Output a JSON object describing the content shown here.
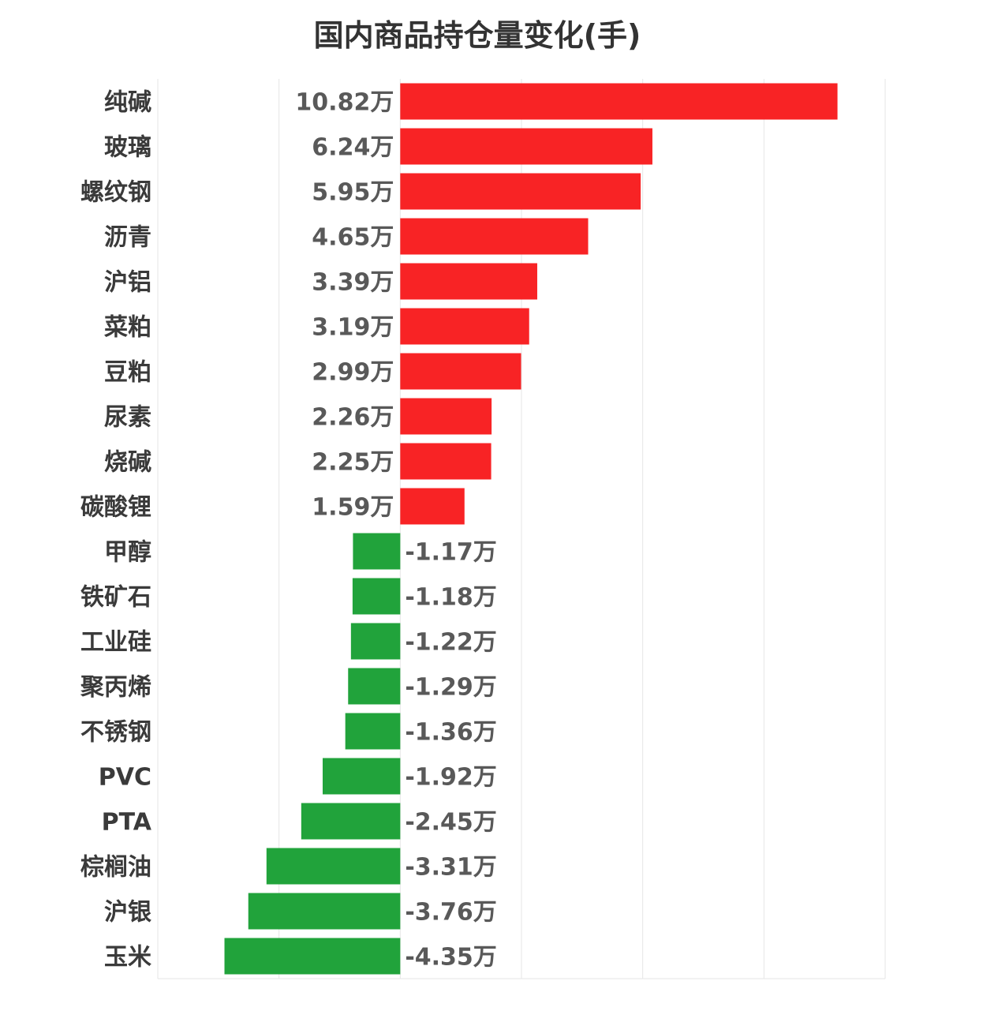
{
  "chart_data": {
    "type": "bar",
    "orientation": "horizontal",
    "title": "国内商品持仓量变化(手)",
    "unit_suffix": "万",
    "categories": [
      "纯碱",
      "玻璃",
      "螺纹钢",
      "沥青",
      "沪铝",
      "菜粕",
      "豆粕",
      "尿素",
      "烧碱",
      "碳酸锂",
      "甲醇",
      "铁矿石",
      "工业硅",
      "聚丙烯",
      "不锈钢",
      "PVC",
      "PTA",
      "棕榈油",
      "沪银",
      "玉米"
    ],
    "values": [
      10.82,
      6.24,
      5.95,
      4.65,
      3.39,
      3.19,
      2.99,
      2.26,
      2.25,
      1.59,
      -1.17,
      -1.18,
      -1.22,
      -1.29,
      -1.36,
      -1.92,
      -2.45,
      -3.31,
      -3.76,
      -4.35
    ],
    "value_labels": [
      "10.82万",
      "6.24万",
      "5.95万",
      "4.65万",
      "3.39万",
      "3.19万",
      "2.99万",
      "2.26万",
      "2.25万",
      "1.59万",
      "-1.17万",
      "-1.18万",
      "-1.22万",
      "-1.29万",
      "-1.36万",
      "-1.92万",
      "-2.45万",
      "-3.31万",
      "-3.76万",
      "-4.35万"
    ],
    "xlim": [
      -6,
      12
    ],
    "gridline_step": 3,
    "grid": true,
    "legend": "none",
    "colors": {
      "positive": "#f82325",
      "negative": "#21a33b",
      "grid": "#e6e6e6"
    }
  }
}
